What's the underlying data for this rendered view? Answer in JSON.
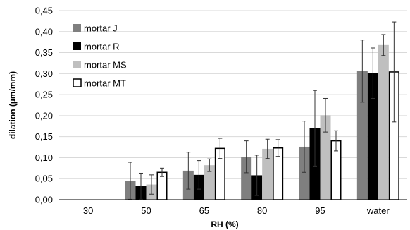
{
  "chart_data": {
    "type": "bar",
    "xlabel": "RH (%)",
    "ylabel": "dilation  (µm/mm)",
    "categories": [
      "30",
      "50",
      "65",
      "80",
      "95",
      "water"
    ],
    "ylim": [
      0,
      0.45
    ],
    "yticks": [
      "0,00",
      "0,05",
      "0,10",
      "0,15",
      "0,20",
      "0,25",
      "0,30",
      "0,35",
      "0,40",
      "0,45"
    ],
    "grid": true,
    "legend_position": "top-left",
    "series": [
      {
        "name": "mortar J",
        "color": "#7f7f7f",
        "values": [
          null,
          0.045,
          0.069,
          0.102,
          0.126,
          0.306
        ],
        "errors": [
          null,
          0.044,
          0.044,
          0.038,
          0.061,
          0.074
        ]
      },
      {
        "name": "mortar R",
        "color": "#000000",
        "values": [
          null,
          0.032,
          0.059,
          0.058,
          0.17,
          0.301
        ],
        "errors": [
          null,
          0.031,
          0.034,
          0.048,
          0.09,
          0.06
        ]
      },
      {
        "name": "mortar MS",
        "color": "#bfbfbf",
        "values": [
          null,
          0.036,
          0.082,
          0.121,
          0.201,
          0.368
        ],
        "errors": [
          null,
          0.023,
          0.015,
          0.023,
          0.04,
          0.025
        ]
      },
      {
        "name": "mortar MT",
        "color": "#ffffff",
        "values": [
          null,
          0.065,
          0.122,
          0.123,
          0.14,
          0.304
        ],
        "errors": [
          null,
          0.01,
          0.024,
          0.02,
          0.024,
          0.119
        ]
      }
    ]
  }
}
